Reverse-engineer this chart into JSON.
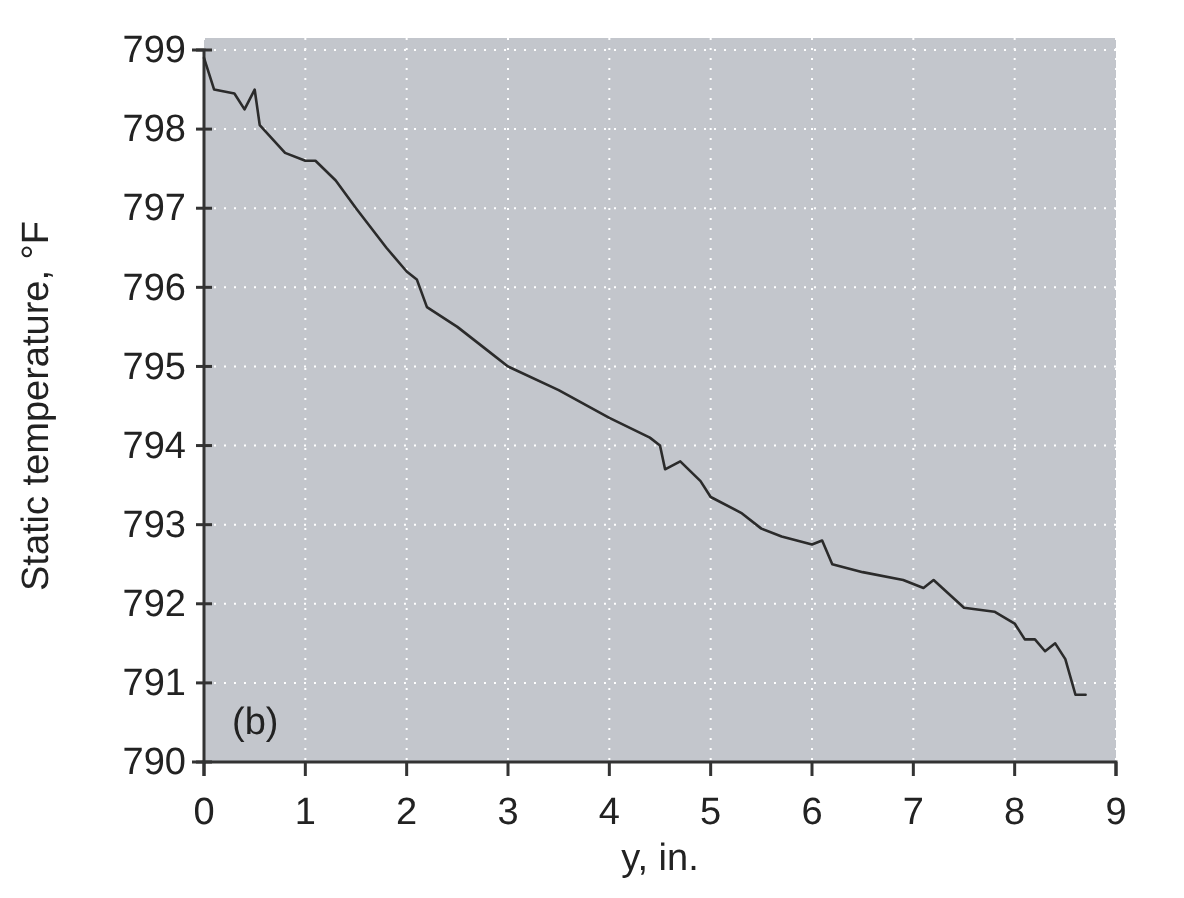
{
  "chart_data": {
    "type": "line",
    "xlabel": "y, in.",
    "ylabel": "Static temperature, °F",
    "annotations": [
      "(b)"
    ],
    "series": [
      {
        "color": "#2b2b2b",
        "x": [
          0,
          0.1,
          0.3,
          0.4,
          0.5,
          0.55,
          0.8,
          1.0,
          1.1,
          1.3,
          1.5,
          1.8,
          2.0,
          2.1,
          2.2,
          2.5,
          2.8,
          3.0,
          3.5,
          4.0,
          4.4,
          4.5,
          4.55,
          4.7,
          4.9,
          5.0,
          5.3,
          5.5,
          5.7,
          6.0,
          6.1,
          6.2,
          6.5,
          6.9,
          7.1,
          7.2,
          7.5,
          7.8,
          8.0,
          8.1,
          8.2,
          8.3,
          8.4,
          8.5,
          8.6,
          8.7
        ],
        "values": [
          798.9,
          798.5,
          798.45,
          798.25,
          798.5,
          798.05,
          797.7,
          797.6,
          797.6,
          797.35,
          797.0,
          796.5,
          796.2,
          796.1,
          795.75,
          795.5,
          795.2,
          795.0,
          794.7,
          794.35,
          794.1,
          794.0,
          793.7,
          793.8,
          793.55,
          793.35,
          793.15,
          792.95,
          792.85,
          792.75,
          792.8,
          792.5,
          792.4,
          792.3,
          792.2,
          792.3,
          791.95,
          791.9,
          791.75,
          791.55,
          791.55,
          791.4,
          791.5,
          791.3,
          790.85,
          790.85
        ]
      }
    ],
    "xlim": [
      0,
      9
    ],
    "xticks": [
      0,
      1,
      2,
      3,
      4,
      5,
      6,
      7,
      8,
      9
    ],
    "ylim": [
      790,
      799
    ],
    "yticks": [
      790,
      791,
      792,
      793,
      794,
      795,
      796,
      797,
      798,
      799
    ],
    "grid": true,
    "line_style": "solid",
    "marker": "none"
  }
}
